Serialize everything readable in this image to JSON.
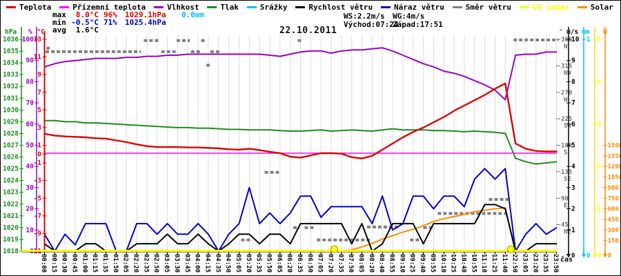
{
  "title": "22.10.2011",
  "legend": {
    "items": [
      {
        "label": "Teplota",
        "color": "#dd0000"
      },
      {
        "label": "Přízemní teplota",
        "color": "#ff00ff"
      },
      {
        "label": "Vlhkost",
        "color": "#9900cc"
      },
      {
        "label": "Tlak",
        "color": "#1e8c1e"
      },
      {
        "label": "Srážky",
        "color": "#00bfff"
      },
      {
        "label": "Rychlost větru",
        "color": "#000000"
      },
      {
        "label": "Náraz větru",
        "color": "#0000cc"
      },
      {
        "label": "Směr větru",
        "color": "#808080"
      },
      {
        "label": "UV index",
        "color": "#ffff00"
      },
      {
        "label": "Solar",
        "color": "#ff8c00"
      }
    ]
  },
  "stats": {
    "max_label": "max",
    "min_label": "min",
    "avg_label": "avg",
    "temp_max": "8.0°C",
    "hum_max": "96%",
    "pres_max": "1029.1hPa",
    "rain_total": "0.0mm",
    "temp_min": "-0.5°C",
    "hum_min": "71%",
    "pres_min": "1025.4hPa",
    "temp_avg": "1.6°C",
    "wind_speed": "WS:2.2m/s",
    "wind_gust": "WG:4m/s",
    "sunrise": "Východ:07:24",
    "sunset": "Západ:17:51"
  },
  "footer": {
    "time_axis_label": "čas",
    "zero_label": "0"
  },
  "axes": {
    "pressure": {
      "header": "hPa",
      "color": "#1e8c1e",
      "min": 1018,
      "max": 1036,
      "ticks": [
        1036,
        1035,
        1034,
        1033,
        1032,
        1031,
        1030,
        1029,
        1028,
        1027,
        1026,
        1025,
        1024,
        1023,
        1022,
        1021,
        1020,
        1019,
        1018
      ]
    },
    "humidity": {
      "header": "%",
      "color": "#9900cc",
      "min": 0,
      "max": 100,
      "ticks": [
        100,
        90,
        80,
        70,
        60,
        50,
        40,
        30,
        20,
        10,
        0
      ]
    },
    "temperature": {
      "header": "°C",
      "color": "#dd0000",
      "min": -11,
      "max": 13,
      "ticks": [
        13,
        11,
        9,
        7,
        5,
        3,
        1,
        0,
        -1,
        -3,
        -5,
        -7,
        -9,
        -11
      ]
    },
    "direction": {
      "header": "°",
      "color": "#707070",
      "min": 0,
      "max": 360,
      "ticks": [
        {
          "deg": 360,
          "compass": "N"
        },
        {
          "deg": 315,
          "compass": "NW"
        },
        {
          "deg": 270,
          "compass": "W"
        },
        {
          "deg": 225,
          "compass": "SW"
        },
        {
          "deg": 180,
          "compass": "S"
        },
        {
          "deg": 135,
          "compass": "SE"
        },
        {
          "deg": 90,
          "compass": "E"
        },
        {
          "deg": 45,
          "compass": "NE"
        }
      ]
    },
    "wind": {
      "header": "m/s",
      "color": "#000000",
      "min": 0,
      "max": 10,
      "ticks": [
        10,
        9,
        8,
        7,
        6,
        5,
        4,
        3,
        2,
        1
      ]
    },
    "rain": {
      "header": "mm",
      "color": "#00bfff",
      "min": 0,
      "max": 1,
      "ticks": [
        1
      ]
    },
    "uv": {
      "header": "",
      "color": "#ffff00",
      "min": 0,
      "max": 5,
      "ticks": [
        5,
        4,
        3,
        2,
        1
      ]
    },
    "solar": {
      "header": "W",
      "color": "#ff8c00",
      "min": 0,
      "max": 3000,
      "ticks": [
        1500,
        1350,
        1200,
        1050,
        900,
        750,
        600,
        450,
        300,
        150
      ]
    }
  },
  "chart_data": {
    "type": "line",
    "title": "22.10.2011",
    "xlabel": "čas",
    "grid": "vertical-only",
    "x_labels": [
      "00:00",
      "00:15",
      "00:30",
      "00:45",
      "01:00",
      "01:15",
      "01:35",
      "01:50",
      "02:05",
      "02:20",
      "02:35",
      "02:50",
      "03:05",
      "03:30",
      "03:45",
      "04:00",
      "04:15",
      "04:35",
      "04:50",
      "05:05",
      "05:20",
      "05:35",
      "05:50",
      "06:05",
      "06:20",
      "06:35",
      "06:50",
      "07:05",
      "07:20",
      "07:35",
      "07:50",
      "08:05",
      "08:20",
      "08:40",
      "08:55",
      "09:10",
      "09:25",
      "09:40",
      "09:55",
      "10:10",
      "10:25",
      "10:40",
      "10:55",
      "11:10",
      "11:25",
      "11:40",
      "22:50",
      "23:05",
      "23:20",
      "23:35",
      "23:50"
    ],
    "series": [
      {
        "id": "temperature",
        "name": "Teplota",
        "axis": "temperature",
        "unit": "°C",
        "color": "#dd0000",
        "width": 2.4,
        "values": [
          2.3,
          2.1,
          2.0,
          1.95,
          1.9,
          1.8,
          1.75,
          1.55,
          1.35,
          1.1,
          0.9,
          0.8,
          0.8,
          0.8,
          0.75,
          0.75,
          0.7,
          0.65,
          0.55,
          0.5,
          0.6,
          0.45,
          0.25,
          0.1,
          -0.3,
          -0.4,
          -0.15,
          0.1,
          0.1,
          0.05,
          -0.35,
          -0.5,
          -0.2,
          0.5,
          1.2,
          1.9,
          2.5,
          3.0,
          3.6,
          4.2,
          4.9,
          5.5,
          6.1,
          6.7,
          7.4,
          8.0,
          1.2,
          0.6,
          0.35,
          0.3,
          0.3
        ]
      },
      {
        "id": "ground_temperature",
        "name": "Přízemní teplota",
        "axis": "temperature",
        "unit": "°C",
        "color": "#ff00ff",
        "width": 1.6,
        "values": [
          0.1,
          0.1,
          0.1,
          0.1,
          0.1,
          0.1,
          0.1,
          0.1,
          0.1,
          0.1,
          0.1,
          0.1,
          0.1,
          0.1,
          0.1,
          0.1,
          0.1,
          0.1,
          0.1,
          0.1,
          0.1,
          0.1,
          0.1,
          0.1,
          0.1,
          0.1,
          0.1,
          0.1,
          0.1,
          0.1,
          0.1,
          0.1,
          0.1,
          0.1,
          0.1,
          0.1,
          0.1,
          0.1,
          0.1,
          0.1,
          0.1,
          0.1,
          0.1,
          0.1,
          0.1,
          0.1,
          0.1,
          0.1,
          0.1,
          0.1,
          0.1
        ]
      },
      {
        "id": "humidity",
        "name": "Vlhkost",
        "axis": "humidity",
        "unit": "%",
        "color": "#9900cc",
        "width": 2,
        "values": [
          87,
          88.5,
          89.5,
          90,
          90.5,
          91,
          91,
          91,
          91.5,
          91.5,
          92,
          92,
          92.5,
          92.5,
          93,
          93,
          93,
          93,
          93,
          93,
          93,
          93,
          92.5,
          92,
          93,
          94,
          94.5,
          94.5,
          93.5,
          94.5,
          95,
          95,
          95.5,
          96,
          94.5,
          92.5,
          90.5,
          88.5,
          87,
          85,
          84,
          82.5,
          80.5,
          78.5,
          76,
          71.5,
          92.5,
          93,
          93,
          94,
          94
        ]
      },
      {
        "id": "pressure",
        "name": "Tlak",
        "axis": "pressure",
        "unit": "hPa",
        "color": "#1e8c1e",
        "width": 2,
        "values": [
          1029.1,
          1029.1,
          1029.0,
          1029.0,
          1028.9,
          1028.9,
          1028.85,
          1028.8,
          1028.75,
          1028.7,
          1028.65,
          1028.6,
          1028.55,
          1028.5,
          1028.5,
          1028.45,
          1028.45,
          1028.4,
          1028.35,
          1028.35,
          1028.3,
          1028.3,
          1028.3,
          1028.25,
          1028.2,
          1028.2,
          1028.25,
          1028.3,
          1028.2,
          1028.25,
          1028.3,
          1028.25,
          1028.2,
          1028.3,
          1028.4,
          1028.3,
          1028.3,
          1028.3,
          1028.25,
          1028.25,
          1028.2,
          1028.15,
          1028.2,
          1028.15,
          1028.1,
          1028.0,
          1025.9,
          1025.6,
          1025.4,
          1025.5,
          1025.6
        ]
      },
      {
        "id": "rain",
        "name": "Srážky",
        "axis": "rain",
        "unit": "mm",
        "color": "#00bfff",
        "width": 2,
        "values": [
          0,
          0,
          0,
          0,
          0,
          0,
          0,
          0,
          0,
          0,
          0,
          0,
          0,
          0,
          0,
          0,
          0,
          0,
          0,
          0,
          0,
          0,
          0,
          0,
          0,
          0,
          0,
          0,
          0,
          0,
          0,
          0,
          0,
          0,
          0,
          0,
          0,
          0,
          0,
          0,
          0,
          0,
          0,
          0,
          0,
          0,
          0,
          0,
          0,
          0,
          0
        ]
      },
      {
        "id": "wind_speed",
        "name": "Rychlost větru",
        "axis": "wind",
        "unit": "m/s",
        "color": "#000000",
        "width": 2,
        "values": [
          0.35,
          0,
          0,
          0,
          0.35,
          0.35,
          0,
          0,
          0,
          0.35,
          0.35,
          0.35,
          0.8,
          0.35,
          0.35,
          0.8,
          0.35,
          0,
          0.35,
          0.8,
          0.8,
          0.35,
          0.8,
          0.8,
          0.35,
          1.3,
          1.3,
          1.3,
          1.3,
          1.3,
          0.35,
          1.3,
          0,
          0.35,
          1.3,
          1.3,
          1.3,
          0.35,
          1.3,
          1.3,
          1.3,
          1.3,
          1.3,
          2.2,
          2.2,
          2.0,
          0,
          0,
          0.35,
          0.35,
          0.35
        ]
      },
      {
        "id": "wind_gust",
        "name": "Náraz větru",
        "axis": "wind",
        "unit": "m/s",
        "color": "#0000cc",
        "width": 2,
        "values": [
          0.8,
          0,
          0.8,
          0.3,
          1.3,
          1.3,
          1.3,
          0,
          0,
          1.3,
          1.3,
          0.8,
          1.3,
          0.8,
          0.8,
          1.3,
          0.8,
          0,
          0.8,
          1.3,
          3.0,
          1.3,
          1.8,
          1.3,
          1.8,
          2.6,
          2.6,
          1.6,
          2.1,
          2.1,
          2.1,
          2.1,
          1.3,
          2.6,
          1.0,
          1.3,
          2.6,
          2.6,
          2.0,
          2.6,
          2.6,
          2.1,
          3.4,
          3.9,
          3.4,
          3.9,
          0,
          0.8,
          1.3,
          0.8,
          1.1
        ]
      },
      {
        "id": "uv_index",
        "name": "UV index",
        "axis": "uv",
        "unit": "",
        "color": "#ffff00",
        "width": 2.5,
        "values": [
          0,
          0,
          0,
          0,
          0,
          0,
          0,
          0,
          0,
          0,
          0,
          0,
          0,
          0,
          0,
          0,
          0,
          0,
          0,
          0,
          0,
          0,
          0,
          0,
          0,
          0,
          0,
          0,
          0,
          0,
          0,
          0,
          0,
          0,
          0,
          0,
          0,
          0,
          0,
          0,
          0,
          0,
          0,
          0,
          0,
          0,
          0,
          0,
          0,
          0,
          0
        ]
      },
      {
        "id": "solar",
        "name": "Solar",
        "axis": "solar",
        "unit": "W",
        "color": "#ff8c00",
        "width": 2,
        "values": [
          0,
          0,
          0,
          0,
          0,
          0,
          0,
          0,
          0,
          0,
          0,
          0,
          0,
          0,
          0,
          0,
          0,
          0,
          0,
          0,
          0,
          0,
          0,
          0,
          0,
          0,
          0,
          0,
          0,
          0,
          20,
          60,
          110,
          170,
          220,
          270,
          310,
          360,
          420,
          460,
          490,
          520,
          560,
          580,
          600,
          615,
          0,
          0,
          0,
          0,
          0
        ]
      }
    ],
    "direction_series": {
      "id": "wind_direction",
      "name": "Směr větru",
      "axis": "direction",
      "unit": "°",
      "color": "#808080",
      "segments": [
        {
          "from": 0.25,
          "to": 0.45,
          "deg": 345
        },
        {
          "from": 0.1,
          "to": 9.4,
          "deg": 339
        },
        {
          "from": 9.7,
          "to": 11.3,
          "deg": 358
        },
        {
          "from": 11.4,
          "to": 12.8,
          "deg": 339
        },
        {
          "from": 12.9,
          "to": 14.2,
          "deg": 358
        },
        {
          "from": 14.3,
          "to": 15.3,
          "deg": 339
        },
        {
          "from": 15.3,
          "to": 15.8,
          "deg": 358
        },
        {
          "from": 15.9,
          "to": 16.05,
          "deg": 316
        },
        {
          "from": 16.2,
          "to": 17.2,
          "deg": 339
        },
        {
          "from": 19.2,
          "to": 20.3,
          "deg": 19
        },
        {
          "from": 21.5,
          "to": 22.9,
          "deg": 134
        },
        {
          "from": 24.3,
          "to": 24.9,
          "deg": 40
        },
        {
          "from": 24.8,
          "to": 25.0,
          "deg": 358
        },
        {
          "from": 25.4,
          "to": 26.3,
          "deg": 40
        },
        {
          "from": 26.6,
          "to": 31.8,
          "deg": 19
        },
        {
          "from": 31.5,
          "to": 34.6,
          "deg": 41
        },
        {
          "from": 35.7,
          "to": 36.8,
          "deg": 19
        },
        {
          "from": 37.0,
          "to": 38.1,
          "deg": 40
        },
        {
          "from": 38.4,
          "to": 45.3,
          "deg": 64
        },
        {
          "from": 43.4,
          "to": 45.3,
          "deg": 88
        },
        {
          "from": 45.8,
          "to": 50.2,
          "deg": 359
        }
      ]
    },
    "sun_markers": [
      {
        "name": "sunrise-marker",
        "index": 28.3
      },
      {
        "name": "sunset-marker",
        "index": 45.55
      }
    ]
  }
}
